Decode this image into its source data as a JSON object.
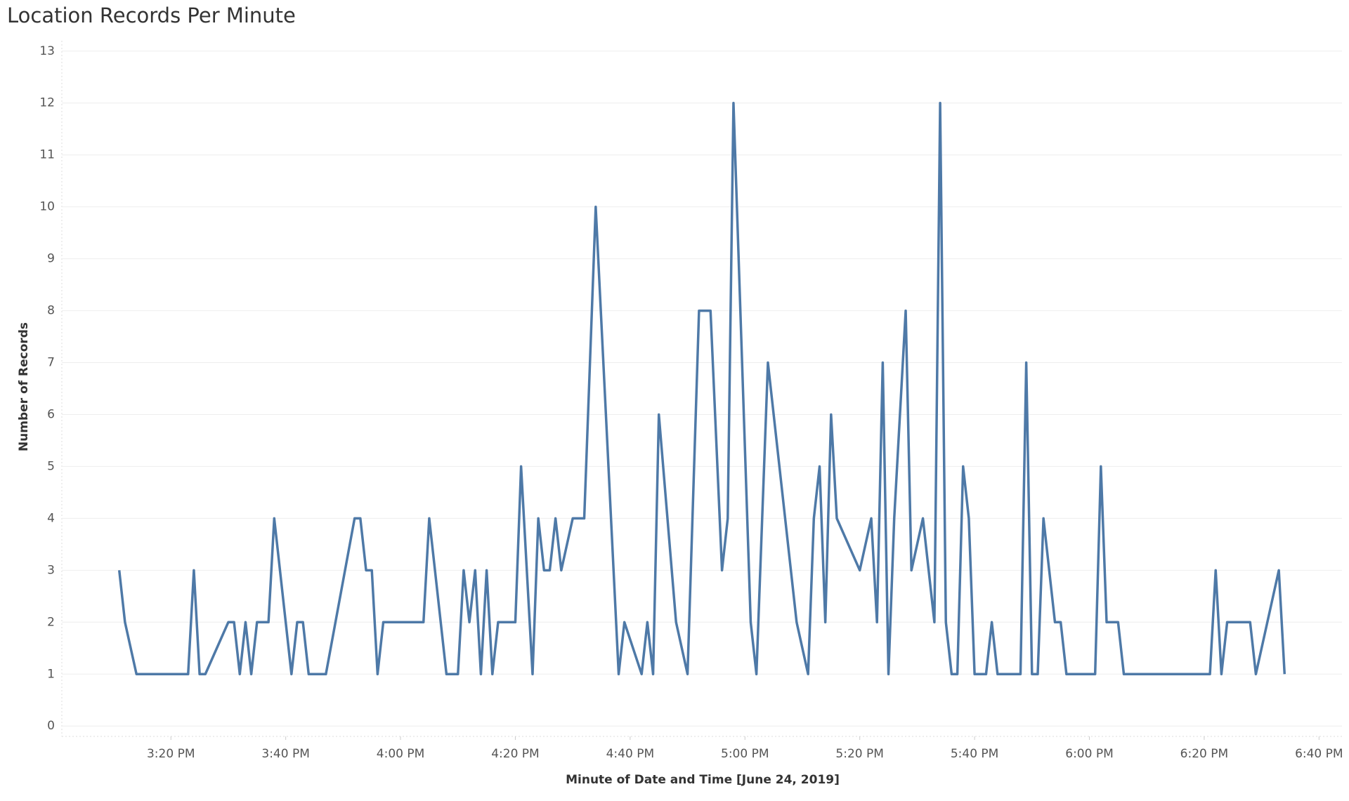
{
  "chart_data": {
    "type": "line",
    "title": "Location Records Per Minute",
    "xlabel": "Minute of Date and Time [June 24, 2019]",
    "ylabel": "Number of Records",
    "color": "#4e79a7",
    "grid": true,
    "x": [
      "15:11",
      "15:12",
      "15:14",
      "15:23",
      "15:24",
      "15:25",
      "15:26",
      "15:30",
      "15:31",
      "15:32",
      "15:33",
      "15:34",
      "15:35",
      "15:37",
      "15:38",
      "15:41",
      "15:42",
      "15:43",
      "15:44",
      "15:47",
      "15:52",
      "15:53",
      "15:54",
      "15:55",
      "15:56",
      "15:57",
      "16:04",
      "16:05",
      "16:08",
      "16:10",
      "16:11",
      "16:12",
      "16:13",
      "16:14",
      "16:15",
      "16:16",
      "16:17",
      "16:20",
      "16:21",
      "16:23",
      "16:24",
      "16:25",
      "16:26",
      "16:27",
      "16:28",
      "16:30",
      "16:32",
      "16:34",
      "16:38",
      "16:39",
      "16:42",
      "16:43",
      "16:44",
      "16:45",
      "16:48",
      "16:50",
      "16:52",
      "16:54",
      "16:56",
      "16:57",
      "16:58",
      "17:01",
      "17:02",
      "17:04",
      "17:09",
      "17:11",
      "17:12",
      "17:13",
      "17:14",
      "17:15",
      "17:16",
      "17:20",
      "17:22",
      "17:23",
      "17:24",
      "17:25",
      "17:26",
      "17:28",
      "17:29",
      "17:31",
      "17:33",
      "17:34",
      "17:35",
      "17:36",
      "17:37",
      "17:38",
      "17:39",
      "17:40",
      "17:42",
      "17:43",
      "17:44",
      "17:48",
      "17:49",
      "17:50",
      "17:51",
      "17:52",
      "17:54",
      "17:55",
      "17:56",
      "18:01",
      "18:02",
      "18:03",
      "18:05",
      "18:06",
      "18:21",
      "18:22",
      "18:23",
      "18:24",
      "18:28",
      "18:29",
      "18:33",
      "18:34"
    ],
    "values": [
      3,
      2,
      1,
      1,
      3,
      1,
      1,
      2,
      2,
      1,
      2,
      1,
      2,
      2,
      4,
      1,
      2,
      2,
      1,
      1,
      4,
      4,
      3,
      3,
      1,
      2,
      2,
      4,
      1,
      1,
      3,
      2,
      3,
      1,
      3,
      1,
      2,
      2,
      5,
      1,
      4,
      3,
      3,
      4,
      3,
      4,
      4,
      10,
      1,
      2,
      1,
      2,
      1,
      6,
      2,
      1,
      8,
      8,
      3,
      4,
      12,
      2,
      1,
      7,
      2,
      1,
      4,
      5,
      2,
      6,
      4,
      3,
      4,
      2,
      7,
      1,
      4,
      8,
      3,
      4,
      2,
      12,
      2,
      1,
      1,
      5,
      4,
      1,
      1,
      2,
      1,
      1,
      7,
      1,
      1,
      4,
      2,
      2,
      1,
      1,
      5,
      2,
      2,
      1,
      1,
      3,
      1,
      2,
      2,
      1,
      3,
      1
    ],
    "xlim": [
      "15:01",
      "18:44"
    ],
    "xticks": [
      {
        "value": "15:20",
        "label": "3:20 PM"
      },
      {
        "value": "15:40",
        "label": "3:40 PM"
      },
      {
        "value": "16:00",
        "label": "4:00 PM"
      },
      {
        "value": "16:20",
        "label": "4:20 PM"
      },
      {
        "value": "16:40",
        "label": "4:40 PM"
      },
      {
        "value": "17:00",
        "label": "5:00 PM"
      },
      {
        "value": "17:20",
        "label": "5:20 PM"
      },
      {
        "value": "17:40",
        "label": "5:40 PM"
      },
      {
        "value": "18:00",
        "label": "6:00 PM"
      },
      {
        "value": "18:20",
        "label": "6:20 PM"
      },
      {
        "value": "18:40",
        "label": "6:40 PM"
      }
    ],
    "ylim": [
      -0.2,
      13.2
    ],
    "yticks": [
      0,
      1,
      2,
      3,
      4,
      5,
      6,
      7,
      8,
      9,
      10,
      11,
      12,
      13
    ]
  }
}
